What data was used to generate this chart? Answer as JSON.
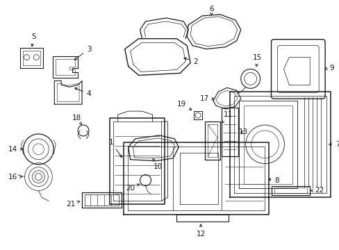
{
  "bg_color": "#ffffff",
  "line_color": "#1a1a1a",
  "fig_width": 4.89,
  "fig_height": 3.6,
  "dpi": 100,
  "font_size": 7.5,
  "lw_main": 0.9,
  "lw_inner": 0.5
}
